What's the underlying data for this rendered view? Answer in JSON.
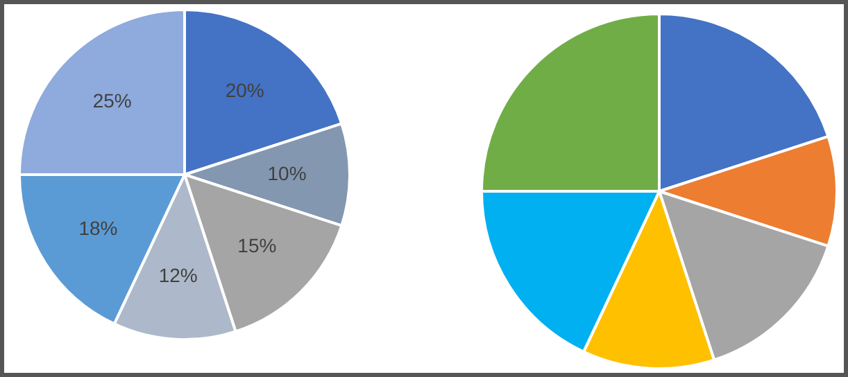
{
  "chart_data": [
    {
      "type": "pie",
      "categories": [
        null,
        null,
        null,
        null,
        null,
        null
      ],
      "values": [
        20,
        10,
        15,
        12,
        18,
        25
      ],
      "colors": [
        "#4472c4",
        "#8497b0",
        "#a5a5a5",
        "#adb9ca",
        "#5b9bd5",
        "#8faadc"
      ],
      "value_labels": [
        "20%",
        "10%",
        "15%",
        "12%",
        "18%",
        "25%"
      ],
      "legend": false
    },
    {
      "type": "pie",
      "categories": [
        null,
        null,
        null,
        null,
        null,
        null
      ],
      "values": [
        20,
        10,
        15,
        12,
        18,
        25
      ],
      "colors": [
        "#4472c4",
        "#ed7d31",
        "#a5a5a5",
        "#ffc000",
        "#00b0f0",
        "#70ad47"
      ],
      "legend": false
    }
  ]
}
